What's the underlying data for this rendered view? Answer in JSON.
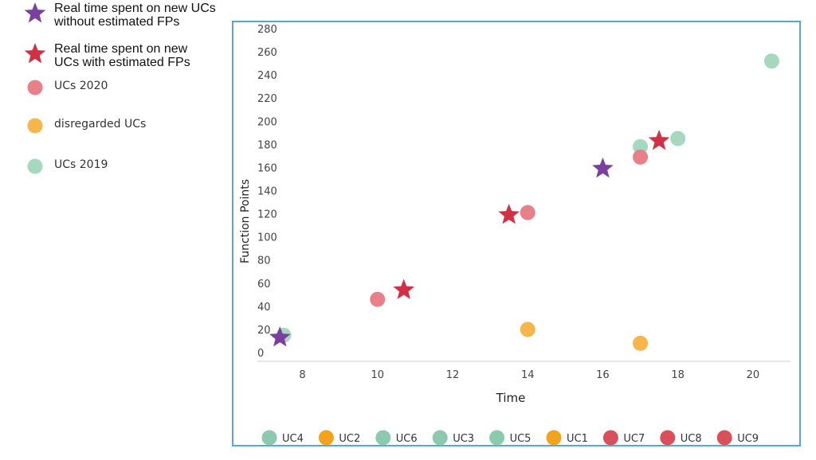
{
  "legend_left": [
    {
      "symbol": "star",
      "color": "#7b3f9e",
      "text": "Real time spent on new UCs\nwithout estimated FPs"
    },
    {
      "symbol": "star",
      "color": "#d32f45",
      "text": "Real time spent on new\nUCs with estimated FPs"
    },
    {
      "symbol": "circle",
      "color": "#e8808a",
      "text": "UCs 2020"
    },
    {
      "symbol": "circle",
      "color": "#f7b54a",
      "text": "disregarded UCs"
    },
    {
      "symbol": "circle",
      "color": "#a6d8c0",
      "text": "UCs 2019"
    }
  ],
  "chart_data": {
    "type": "scatter",
    "xlabel": "Time",
    "ylabel": "Function Points",
    "xlim": [
      6.8,
      21
    ],
    "ylim": [
      0,
      280
    ],
    "xticks": [
      8,
      10,
      12,
      14,
      16,
      18,
      20
    ],
    "yticks": [
      0,
      20,
      40,
      60,
      80,
      100,
      120,
      140,
      160,
      180,
      200,
      220,
      240,
      260,
      280
    ],
    "grid": false,
    "legend_position": "bottom",
    "legend": [
      {
        "label": "UC4",
        "color": "#8ccab0"
      },
      {
        "label": "UC2",
        "color": "#f4a21c"
      },
      {
        "label": "UC6",
        "color": "#8ccab0"
      },
      {
        "label": "UC3",
        "color": "#8ccab0"
      },
      {
        "label": "UC5",
        "color": "#8ccab0"
      },
      {
        "label": "UC1",
        "color": "#f4a21c"
      },
      {
        "label": "UC7",
        "color": "#d9505a"
      },
      {
        "label": "UC8",
        "color": "#d9505a"
      },
      {
        "label": "UC9",
        "color": "#d9505a"
      }
    ],
    "series": [
      {
        "group": "UCs 2019",
        "marker": "circle",
        "color": "#a6d8c0",
        "points": [
          [
            7.5,
            15
          ],
          [
            17,
            178
          ],
          [
            18,
            185
          ],
          [
            20.5,
            252
          ]
        ]
      },
      {
        "group": "disregarded UCs",
        "marker": "circle",
        "color": "#f7b54a",
        "points": [
          [
            14,
            20
          ],
          [
            17,
            8
          ]
        ]
      },
      {
        "group": "UCs 2020",
        "marker": "circle",
        "color": "#e8808a",
        "points": [
          [
            10,
            46
          ],
          [
            14,
            121
          ],
          [
            17,
            169
          ]
        ]
      },
      {
        "group": "Real time spent on new UCs without estimated FPs",
        "marker": "star",
        "color": "#7b3f9e",
        "points": [
          [
            7.4,
            13
          ],
          [
            16,
            159
          ]
        ]
      },
      {
        "group": "Real time spent on new UCs with estimated FPs",
        "marker": "star",
        "color": "#d32f45",
        "points": [
          [
            10.7,
            54
          ],
          [
            13.5,
            119
          ],
          [
            17.5,
            183
          ]
        ]
      }
    ]
  }
}
